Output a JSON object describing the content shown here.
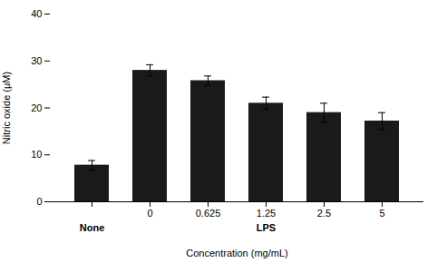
{
  "chart_data": {
    "type": "bar",
    "categories": [
      null,
      "0",
      "0.625",
      "1.25",
      "2.5",
      "5"
    ],
    "values": [
      7.8,
      28.0,
      25.8,
      21.0,
      19.0,
      17.2
    ],
    "errors": [
      1.0,
      1.2,
      1.0,
      1.3,
      2.0,
      1.8
    ],
    "color": "#1a1a1a",
    "ylabel": "Nitric oxide (μM)",
    "xlabel": "Concentration (mg/mL)",
    "annotations": [
      "None",
      "LPS"
    ],
    "ylim": [
      0,
      40
    ],
    "yticks": [
      0,
      10,
      20,
      30,
      40
    ],
    "grid": false
  }
}
